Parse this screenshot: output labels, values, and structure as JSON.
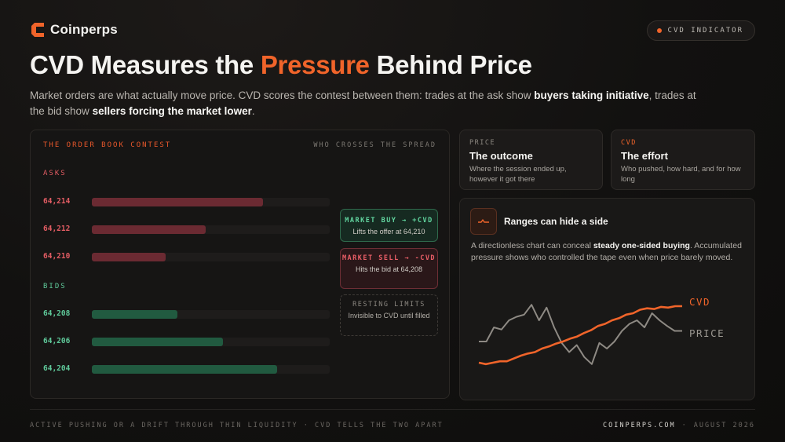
{
  "brand": {
    "name": "Coinperps",
    "accent": "#f0642a"
  },
  "badge": {
    "label": "CVD INDICATOR"
  },
  "headline": {
    "before": "CVD Measures the ",
    "accent": "Pressure",
    "after": " Behind Price"
  },
  "subtitle": {
    "part1": "Market orders are what actually move price. CVD scores the contest between them: trades at the ask show ",
    "bold1": "buyers taking initiative",
    "part2": ", trades at the bid show ",
    "bold2": "sellers forcing the market lower",
    "part3": "."
  },
  "order_book": {
    "title": "THE ORDER BOOK CONTEST",
    "right_label": "WHO CROSSES THE SPREAD",
    "asks_label": "ASKS",
    "bids_label": "BIDS",
    "asks": [
      {
        "price": "64,214",
        "depth": 0.72
      },
      {
        "price": "64,212",
        "depth": 0.48
      },
      {
        "price": "64,210",
        "depth": 0.31
      }
    ],
    "bids": [
      {
        "price": "64,208",
        "depth": 0.36
      },
      {
        "price": "64,206",
        "depth": 0.55
      },
      {
        "price": "64,204",
        "depth": 0.78
      }
    ],
    "cards": {
      "buy": {
        "title": "MARKET BUY → +CVD",
        "sub": "Lifts the offer at 64,210"
      },
      "sell": {
        "title": "MARKET SELL → -CVD",
        "sub": "Hits the bid at 64,208"
      },
      "rest": {
        "title": "RESTING LIMITS",
        "sub": "Invisible to CVD until filled"
      }
    }
  },
  "price_card": {
    "label": "PRICE",
    "title": "The outcome",
    "desc": "Where the session ended up, however it got there"
  },
  "cvd_card": {
    "label": "CVD",
    "title": "The effort",
    "desc": "Who pushed, how hard, and for how long"
  },
  "ranges": {
    "icon": "pulse-icon",
    "title": "Ranges can hide a side",
    "desc_before": "A directionless chart can conceal ",
    "desc_bold": "steady one-sided buying",
    "desc_after": ". Accumulated pressure shows who controlled the tape even when price barely moved.",
    "cvd_label": "CVD",
    "price_label": "PRICE"
  },
  "chart_data": {
    "type": "line",
    "title": "",
    "xlabel": "",
    "ylabel": "",
    "series": [
      {
        "name": "CVD",
        "color": "#f0642a",
        "values": [
          0.1,
          0.08,
          0.1,
          0.12,
          0.12,
          0.16,
          0.2,
          0.23,
          0.25,
          0.3,
          0.33,
          0.37,
          0.4,
          0.44,
          0.47,
          0.52,
          0.56,
          0.62,
          0.65,
          0.7,
          0.73,
          0.78,
          0.8,
          0.85,
          0.87,
          0.86,
          0.89,
          0.88,
          0.9,
          0.9
        ]
      },
      {
        "name": "PRICE",
        "color": "#8e8a84",
        "values": [
          0.4,
          0.4,
          0.6,
          0.57,
          0.7,
          0.75,
          0.78,
          0.92,
          0.7,
          0.88,
          0.6,
          0.38,
          0.25,
          0.35,
          0.18,
          0.08,
          0.38,
          0.3,
          0.4,
          0.55,
          0.65,
          0.7,
          0.6,
          0.8,
          0.7,
          0.62,
          0.55,
          0.55
        ]
      }
    ]
  },
  "footer": {
    "left": "ACTIVE PUSHING OR A DRIFT THROUGH THIN LIQUIDITY · CVD TELLS THE TWO APART",
    "site": "COINPERPS.COM",
    "sep": "·",
    "date": "AUGUST 2026"
  }
}
